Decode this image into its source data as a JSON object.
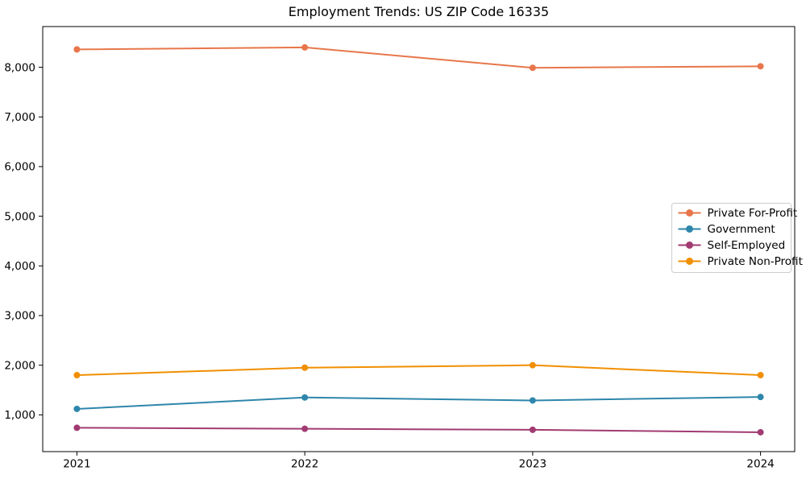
{
  "chart_data": {
    "type": "line",
    "title": "Employment Trends: US ZIP Code 16335",
    "xlabel": "",
    "ylabel": "",
    "x": [
      2021,
      2022,
      2023,
      2024
    ],
    "x_tick_labels": [
      "2021",
      "2022",
      "2023",
      "2024"
    ],
    "y_ticks": [
      1000,
      2000,
      3000,
      4000,
      5000,
      6000,
      7000,
      8000
    ],
    "y_tick_labels": [
      "1,000",
      "2,000",
      "3,000",
      "4,000",
      "5,000",
      "6,000",
      "7,000",
      "8,000"
    ],
    "xlim": [
      2020.85,
      2024.15
    ],
    "ylim": [
      260,
      8820
    ],
    "grid": false,
    "marker": "circle",
    "axis_color": "#000000",
    "background_color": "#ffffff",
    "series": [
      {
        "name": "Private For-Profit",
        "color": "#E8764A",
        "values": [
          8360,
          8400,
          7990,
          8020
        ]
      },
      {
        "name": "Government",
        "color": "#2E86AB",
        "values": [
          1120,
          1350,
          1290,
          1360
        ]
      },
      {
        "name": "Self-Employed",
        "color": "#A23B72",
        "values": [
          740,
          720,
          700,
          650
        ]
      },
      {
        "name": "Private Non-Profit",
        "color": "#F18F01",
        "values": [
          1800,
          1950,
          2000,
          1800
        ]
      }
    ],
    "legend": {
      "position": "center-right",
      "background": "#ffffff",
      "border_color": "#cccccc",
      "entries": [
        "Private For-Profit",
        "Government",
        "Self-Employed",
        "Private Non-Profit"
      ]
    }
  }
}
